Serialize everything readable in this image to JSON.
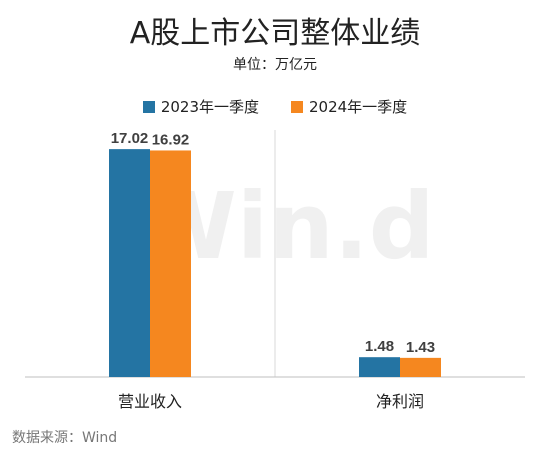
{
  "chart_data": {
    "type": "bar",
    "title": "A股上市公司整体业绩",
    "subtitle": "单位：万亿元",
    "categories": [
      "营业收入",
      "净利润"
    ],
    "series": [
      {
        "name": "2023年一季度",
        "values": [
          17.02,
          1.48
        ],
        "color": "#2474a3"
      },
      {
        "name": "2024年一季度",
        "values": [
          16.92,
          1.43
        ],
        "color": "#f5871f"
      }
    ],
    "ylim": [
      0,
      18
    ],
    "grid": false,
    "legend": "top-center"
  },
  "watermark": "Win.d",
  "source": "数据来源：Wind"
}
